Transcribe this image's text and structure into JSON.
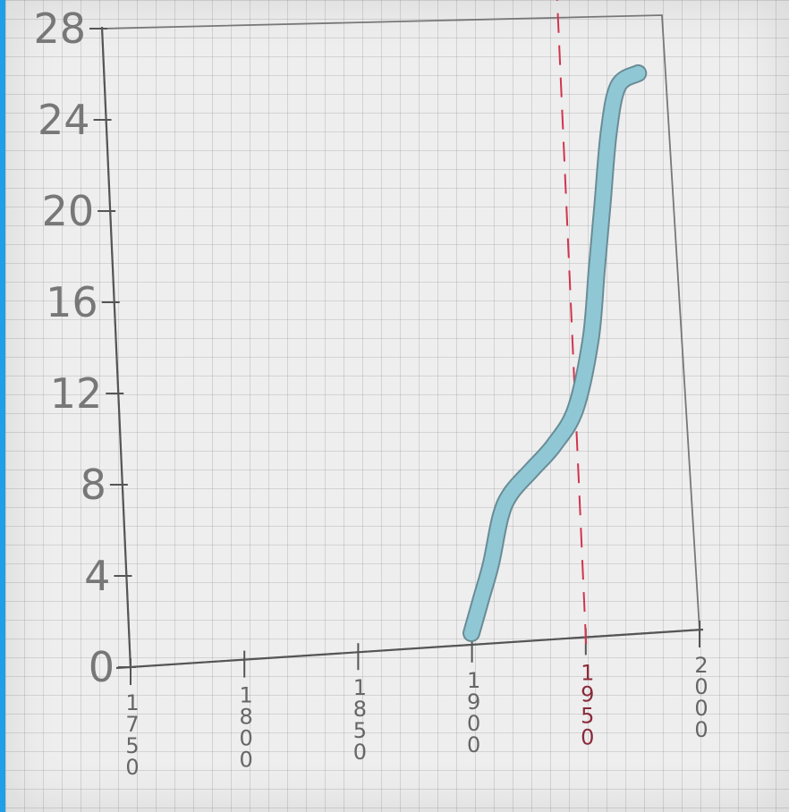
{
  "chart_data": {
    "type": "line",
    "title": "",
    "xlabel": "",
    "ylabel": "",
    "x_ticks": [
      1750,
      1800,
      1850,
      1900,
      1950,
      2000
    ],
    "y_ticks": [
      0,
      4,
      8,
      12,
      16,
      20,
      24,
      28
    ],
    "xlim": [
      1750,
      2000
    ],
    "ylim": [
      0,
      28
    ],
    "grid": true,
    "series": [
      {
        "x": [
          1900,
          1905,
          1910,
          1915,
          1920,
          1930,
          1940,
          1950,
          1958,
          1962,
          1966,
          1970,
          1975,
          1984
        ],
        "y": [
          0.5,
          2,
          3.5,
          5.5,
          6.5,
          7.5,
          8.5,
          10,
          13,
          16,
          19,
          22,
          24,
          24.5
        ]
      }
    ],
    "reference_line_x": 1950,
    "colors": {
      "band_fill": "#8fc7d5",
      "band_edge": "#6a8c96",
      "reference_line": "#d1344e",
      "axis": "#555555"
    }
  }
}
